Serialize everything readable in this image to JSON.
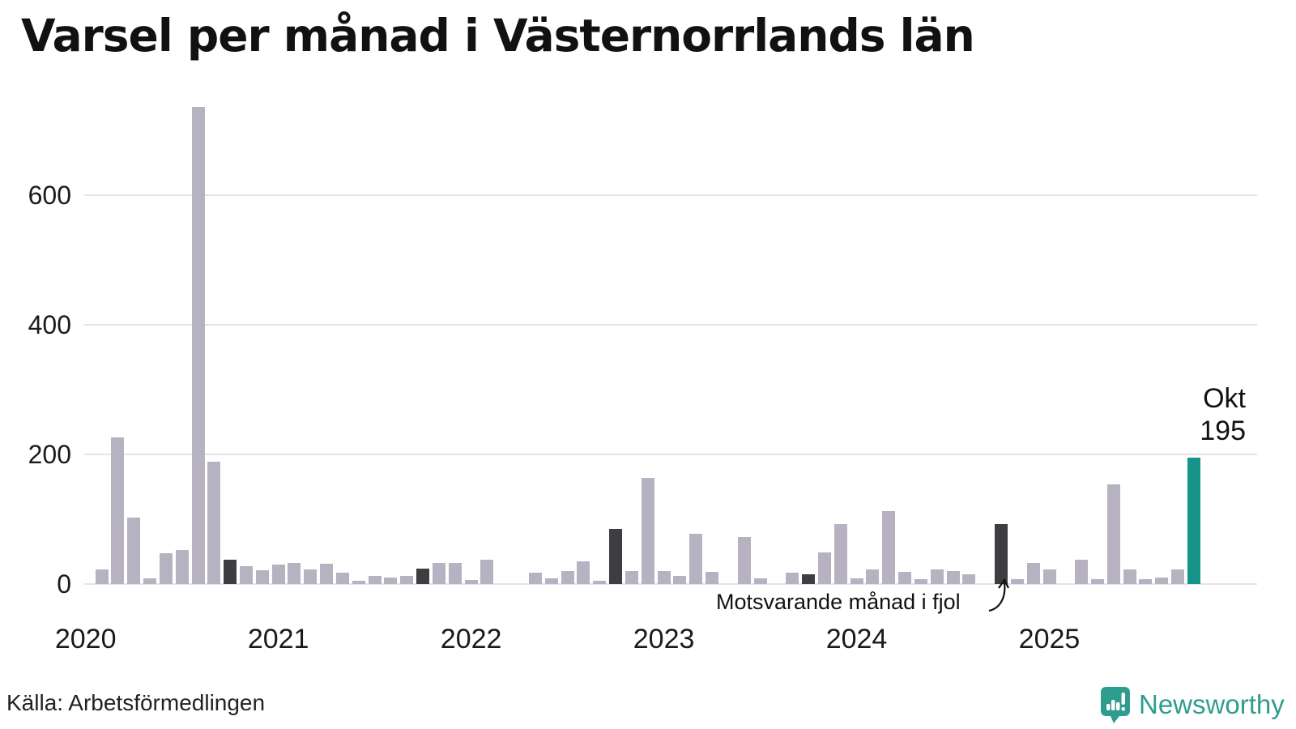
{
  "title": "Varsel per månad i Västernorrlands län",
  "chart_data": {
    "type": "bar",
    "title": "Varsel per månad i Västernorrlands län",
    "xlabel": "",
    "ylabel": "",
    "yticks": [
      0,
      200,
      400,
      600
    ],
    "ylim": [
      0,
      740
    ],
    "grid": true,
    "legend": false,
    "months": [
      "jan 2020",
      "feb 2020",
      "mar 2020",
      "apr 2020",
      "maj 2020",
      "jun 2020",
      "jul 2020",
      "aug 2020",
      "sep 2020",
      "okt 2020",
      "nov 2020",
      "dec 2020",
      "jan 2021",
      "feb 2021",
      "mar 2021",
      "apr 2021",
      "maj 2021",
      "jun 2021",
      "jul 2021",
      "aug 2021",
      "sep 2021",
      "okt 2021",
      "nov 2021",
      "dec 2021",
      "jan 2022",
      "feb 2022",
      "mar 2022",
      "apr 2022",
      "maj 2022",
      "jun 2022",
      "jul 2022",
      "aug 2022",
      "sep 2022",
      "okt 2022",
      "nov 2022",
      "dec 2022",
      "jan 2023",
      "feb 2023",
      "mar 2023",
      "apr 2023",
      "maj 2023",
      "jun 2023",
      "jul 2023",
      "aug 2023",
      "sep 2023",
      "okt 2023",
      "nov 2023",
      "dec 2023",
      "jan 2024",
      "feb 2024",
      "mar 2024",
      "apr 2024",
      "maj 2024",
      "jun 2024",
      "jul 2024",
      "aug 2024",
      "sep 2024",
      "okt 2024",
      "nov 2024",
      "dec 2024",
      "jan 2025",
      "feb 2025",
      "mar 2025",
      "apr 2025",
      "maj 2025",
      "jun 2025",
      "jul 2025",
      "aug 2025",
      "sep 2025",
      "okt 2025"
    ],
    "values": [
      0,
      23,
      226,
      102,
      9,
      47,
      53,
      735,
      189,
      38,
      27,
      21,
      30,
      32,
      23,
      31,
      18,
      5,
      13,
      10,
      12,
      24,
      33,
      33,
      6,
      37,
      0,
      0,
      18,
      9,
      20,
      35,
      5,
      85,
      20,
      164,
      20,
      12,
      77,
      19,
      0,
      73,
      9,
      0,
      17,
      15,
      49,
      92,
      9,
      23,
      112,
      19,
      8,
      22,
      20,
      15,
      0,
      92,
      8,
      32,
      22,
      0,
      37,
      8,
      153,
      22,
      8,
      10,
      23,
      195
    ],
    "x_year_labels": [
      {
        "label": "2020",
        "month_index": 0
      },
      {
        "label": "2021",
        "month_index": 12
      },
      {
        "label": "2022",
        "month_index": 24
      },
      {
        "label": "2023",
        "month_index": 36
      },
      {
        "label": "2024",
        "month_index": 48
      },
      {
        "label": "2025",
        "month_index": 60
      }
    ],
    "dark_indices": [
      9,
      21,
      33,
      45,
      57
    ],
    "current": {
      "index": 69,
      "month_label": "Okt",
      "value": 195
    },
    "annotation": {
      "text": "Motsvarande månad i fjol",
      "points_to_index": 57
    },
    "bar_colors": {
      "default": "#b6b2c2",
      "previous_october": "#3e3d42",
      "current": "#17948a"
    }
  },
  "footer": {
    "source": "Källa: Arbetsförmedlingen",
    "brand": "Newsworthy"
  },
  "colors": {
    "background": "#ffffff",
    "gridline": "#e4e3ea",
    "text": "#1a1a1a",
    "brand_teal": "#2f9d8e"
  }
}
